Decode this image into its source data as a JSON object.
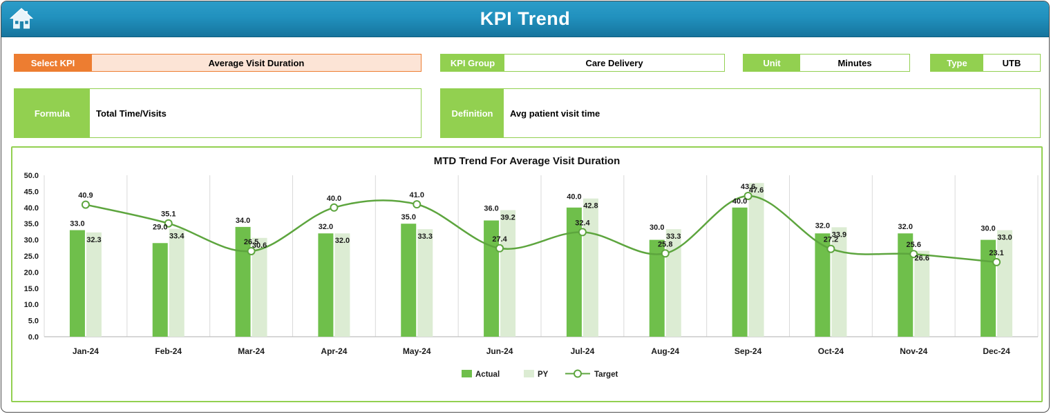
{
  "header": {
    "title": "KPI Trend"
  },
  "selectors": {
    "select_kpi_label": "Select KPI",
    "select_kpi_value": "Average Visit Duration",
    "kpi_group_label": "KPI Group",
    "kpi_group_value": "Care Delivery",
    "unit_label": "Unit",
    "unit_value": "Minutes",
    "type_label": "Type",
    "type_value": "UTB",
    "formula_label": "Formula",
    "formula_value": "Total Time/Visits",
    "definition_label": "Definition",
    "definition_value": "Avg patient visit time"
  },
  "chart_data": {
    "type": "bar",
    "subtype": "clustered-bars-with-smooth-line",
    "title": "MTD Trend For Average Visit Duration",
    "categories": [
      "Jan-24",
      "Feb-24",
      "Mar-24",
      "Apr-24",
      "May-24",
      "Jun-24",
      "Jul-24",
      "Aug-24",
      "Sep-24",
      "Oct-24",
      "Nov-24",
      "Dec-24"
    ],
    "series": [
      {
        "name": "Actual",
        "chart_type": "bar",
        "color": "#6FBF4B",
        "values": [
          33.0,
          29.0,
          34.0,
          32.0,
          35.0,
          36.0,
          40.0,
          30.0,
          40.0,
          32.0,
          32.0,
          30.0
        ]
      },
      {
        "name": "PY",
        "chart_type": "bar",
        "color": "#DCECD3",
        "values": [
          32.3,
          33.4,
          30.6,
          32.0,
          33.3,
          39.2,
          42.8,
          33.3,
          47.6,
          33.9,
          26.6,
          33.0
        ]
      },
      {
        "name": "Target",
        "chart_type": "line",
        "color": "#5DA53E",
        "values": [
          40.9,
          35.1,
          26.5,
          40.0,
          41.0,
          27.4,
          32.4,
          25.8,
          43.6,
          27.2,
          25.6,
          23.1
        ]
      }
    ],
    "ylim": [
      0,
      50
    ],
    "ytick_step": 5,
    "grid": "vertical-only",
    "legend_position": "bottom"
  },
  "colors": {
    "header_grad1": "#2C9CC8",
    "header_grad2": "#2191BE",
    "header_grad3": "#16749D",
    "orange": "#ED7D31",
    "orange_light": "#FCE4D6",
    "green": "#92D050",
    "grid": "#D9D9D9",
    "axis": "#BFBFBF"
  }
}
